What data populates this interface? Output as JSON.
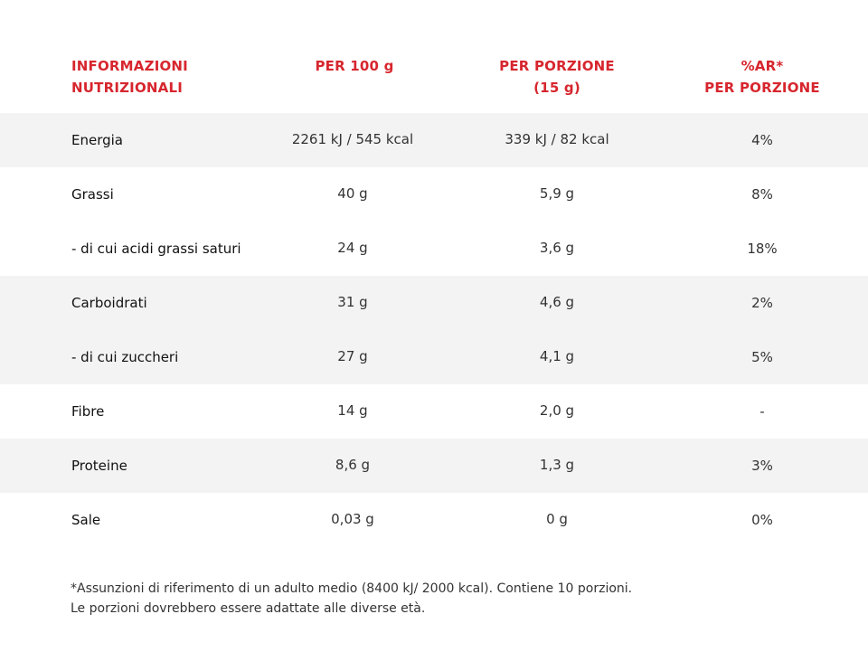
{
  "header": {
    "col0": [
      "INFORMAZIONI",
      "NUTRIZIONALI"
    ],
    "col1": [
      "PER 100 g"
    ],
    "col2": [
      "PER PORZIONE",
      "(15 g)"
    ],
    "col3": [
      "%AR*",
      "PER PORZIONE"
    ]
  },
  "rows": [
    {
      "label": "Energia",
      "per100": "2261 kJ / 545 kcal",
      "perPortion": "339 kJ / 82 kcal",
      "ar": "4%"
    },
    {
      "label": "Grassi",
      "per100": "40 g",
      "perPortion": "5,9 g",
      "ar": "8%"
    },
    {
      "label": "- di cui acidi grassi saturi",
      "per100": "24 g",
      "perPortion": "3,6  g",
      "ar": "18%"
    },
    {
      "label": "Carboidrati",
      "per100": "31 g",
      "perPortion": "4,6 g",
      "ar": "2%"
    },
    {
      "label": "- di cui zuccheri",
      "per100": "27 g",
      "perPortion": "4,1 g",
      "ar": "5%"
    },
    {
      "label": "Fibre",
      "per100": "14 g",
      "perPortion": "2,0 g",
      "ar": "-"
    },
    {
      "label": "Proteine",
      "per100": "8,6 g",
      "perPortion": "1,3 g",
      "ar": "3%"
    },
    {
      "label": "Sale",
      "per100": "0,03 g",
      "perPortion": "0 g",
      "ar": "0%"
    }
  ],
  "footnote": [
    "*Assunzioni di riferimento di un adulto medio (8400 kJ/ 2000 kcal). Contiene 10 porzioni.",
    "Le porzioni dovrebbero essere adattate alle diverse età."
  ],
  "colors": {
    "accent": "#d7262e",
    "shade": "#f3f3f3"
  }
}
